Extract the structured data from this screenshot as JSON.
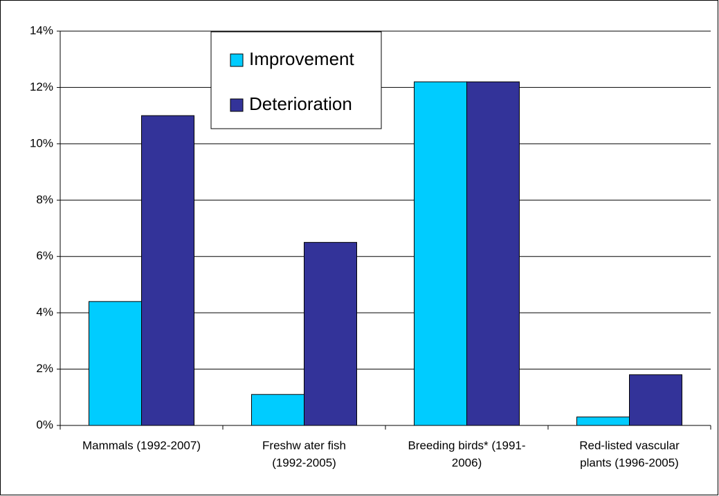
{
  "chart_data": {
    "type": "bar",
    "categories": [
      [
        "Mammals (1992-2007)"
      ],
      [
        "Freshw ater fish",
        "(1992-2005)"
      ],
      [
        "Breeding birds* (1991-",
        "2006)"
      ],
      [
        "Red-listed vascular",
        "plants (1996-2005)"
      ]
    ],
    "series": [
      {
        "name": "Improvement",
        "color": "#00ccff",
        "values": [
          4.4,
          1.1,
          12.2,
          0.3
        ]
      },
      {
        "name": "Deterioration",
        "color": "#333399",
        "values": [
          11.0,
          6.5,
          12.2,
          1.8
        ]
      }
    ],
    "ylim": [
      0,
      14
    ],
    "yticks": [
      {
        "value": 0,
        "label": "0%"
      },
      {
        "value": 2,
        "label": "2%"
      },
      {
        "value": 4,
        "label": "4%"
      },
      {
        "value": 6,
        "label": "6%"
      },
      {
        "value": 8,
        "label": "8%"
      },
      {
        "value": 10,
        "label": "10%"
      },
      {
        "value": 12,
        "label": "12%"
      },
      {
        "value": 14,
        "label": "14%"
      }
    ],
    "grid": true
  }
}
